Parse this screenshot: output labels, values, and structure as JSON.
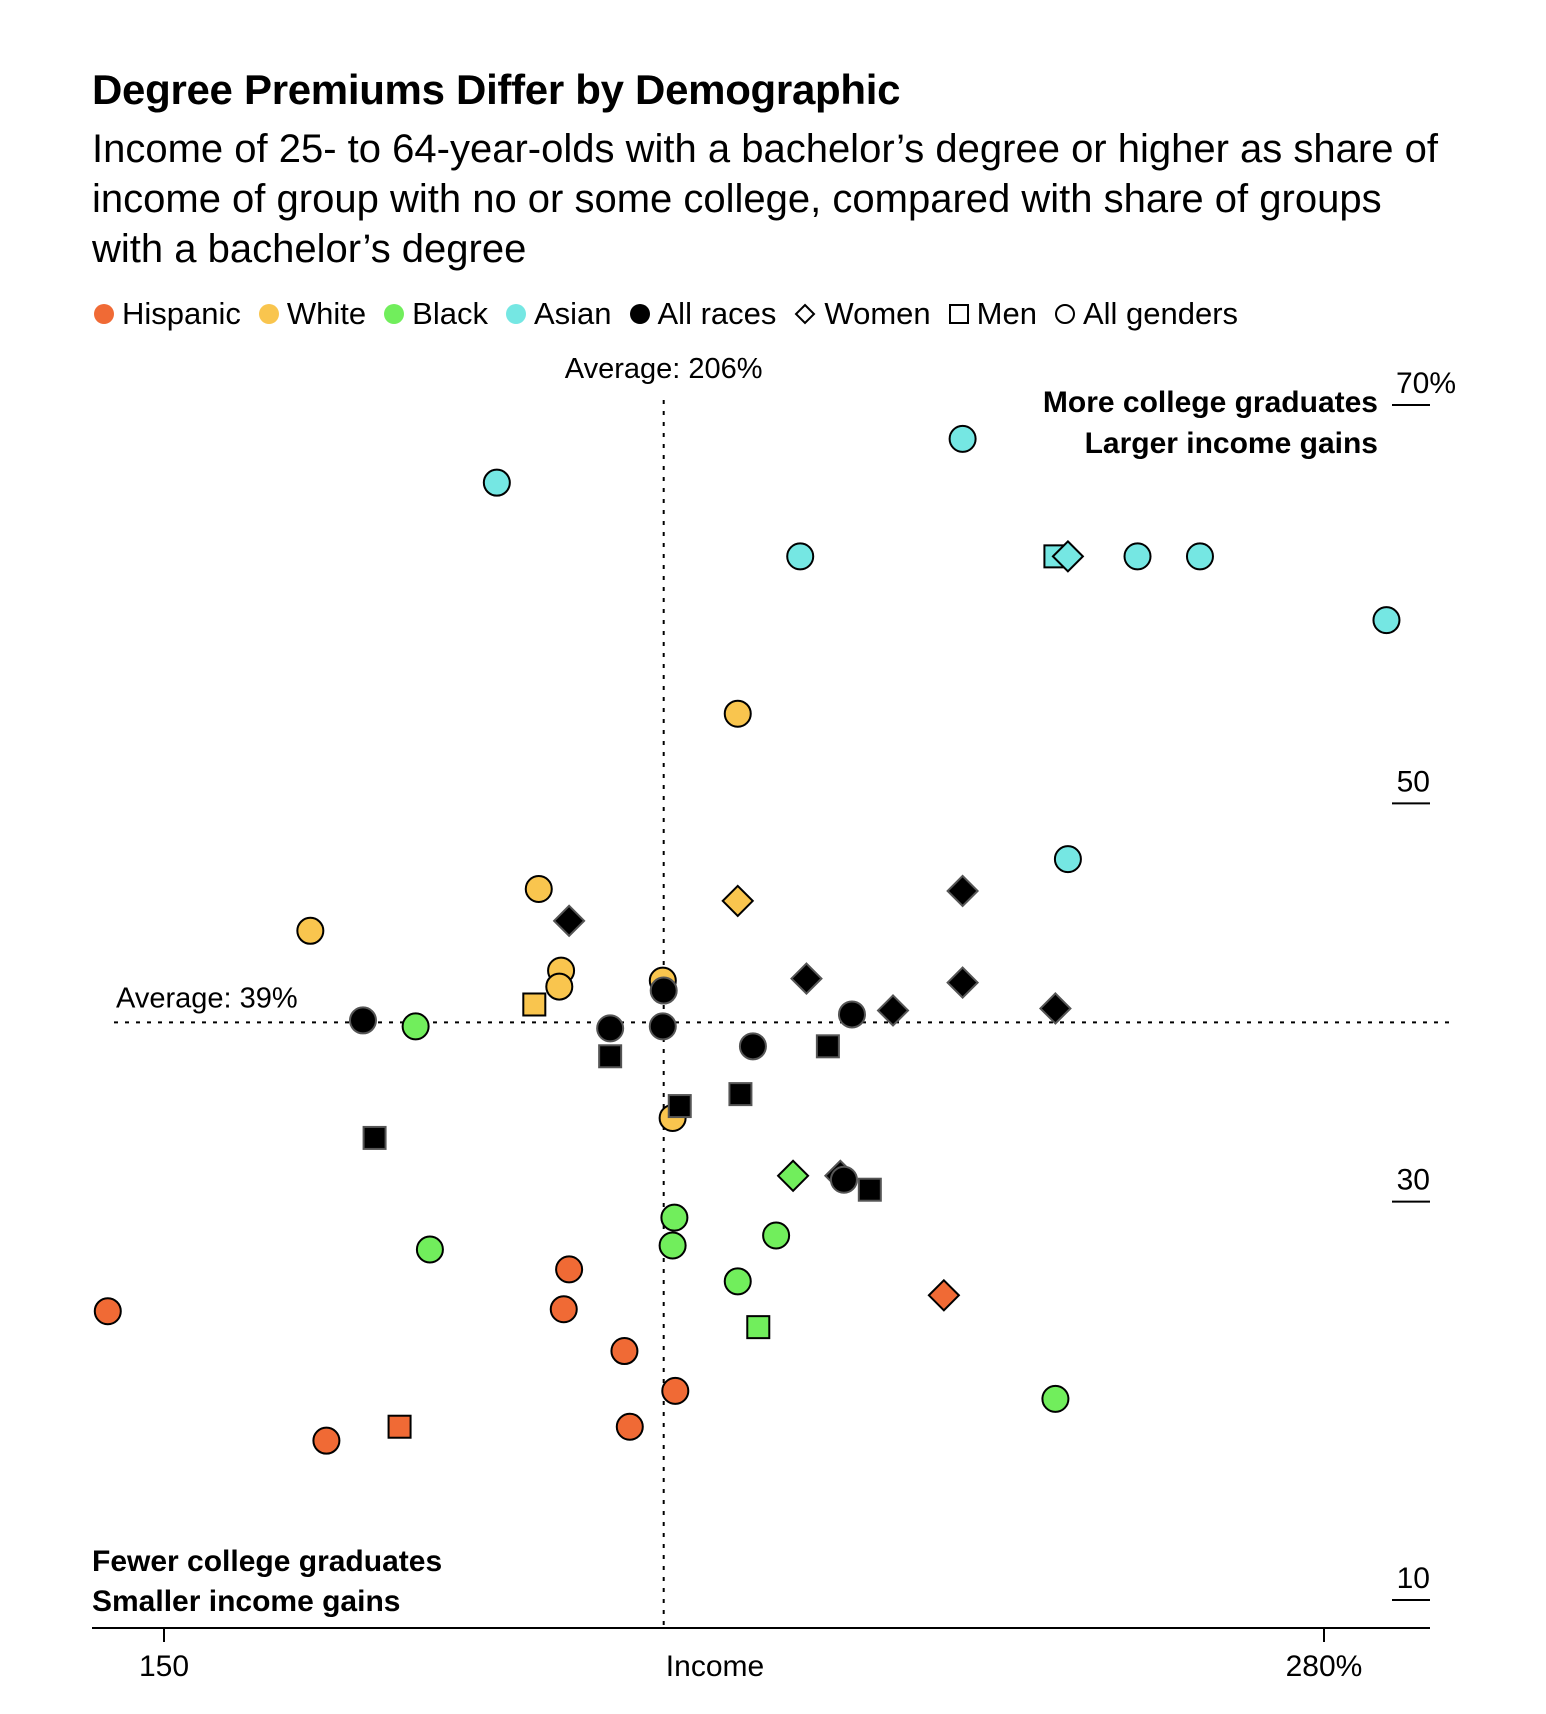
{
  "header": {
    "title": "Degree Premiums Differ by Demographic",
    "subtitle": "Income of 25- to 64-year-olds with a bachelor’s degree or higher as share of income of group with no or some college, compared with share of groups with a bachelor’s degree"
  },
  "legend": {
    "races": [
      {
        "label": "Hispanic",
        "color": "#f06a35"
      },
      {
        "label": "White",
        "color": "#f9c54e"
      },
      {
        "label": "Black",
        "color": "#71ee5c"
      },
      {
        "label": "Asian",
        "color": "#75e7e3"
      },
      {
        "label": "All races",
        "color": "#000000"
      }
    ],
    "genders": [
      {
        "label": "Women",
        "shape": "diamond"
      },
      {
        "label": "Men",
        "shape": "square"
      },
      {
        "label": "All genders",
        "shape": "circle"
      }
    ]
  },
  "chart_data": {
    "type": "scatter",
    "xlabel": "Income",
    "ylabel": "",
    "xlim": [
      143,
      285
    ],
    "ylim": [
      8,
      72
    ],
    "x_ticks": [
      {
        "value": 150,
        "label": "150"
      },
      {
        "value": 280,
        "label": "280%"
      }
    ],
    "y_ticks": [
      {
        "value": 70,
        "label": "70%"
      },
      {
        "value": 50,
        "label": "50"
      },
      {
        "value": 30,
        "label": "30"
      },
      {
        "value": 10,
        "label": "10"
      }
    ],
    "grid": false,
    "reference_lines": [
      {
        "axis": "x",
        "value": 206,
        "label": "Average: 206%"
      },
      {
        "axis": "y",
        "value": 39,
        "label": "Average: 39%"
      }
    ],
    "quadrant_labels": [
      {
        "position": "top-right",
        "lines": [
          "More college graduates",
          "Larger income gains"
        ]
      },
      {
        "position": "bottom-left",
        "lines": [
          "Fewer college graduates",
          "Smaller income gains"
        ]
      }
    ],
    "points": [
      {
        "race": "Asian",
        "gender": "All genders",
        "x": 239.5,
        "y": 68.3
      },
      {
        "race": "Asian",
        "gender": "All genders",
        "x": 187.3,
        "y": 66.1
      },
      {
        "race": "Asian",
        "gender": "All genders",
        "x": 221.3,
        "y": 62.4
      },
      {
        "race": "Asian",
        "gender": "Men",
        "x": 249.9,
        "y": 62.4
      },
      {
        "race": "Asian",
        "gender": "Women",
        "x": 251.3,
        "y": 62.4
      },
      {
        "race": "Asian",
        "gender": "All genders",
        "x": 259.1,
        "y": 62.4
      },
      {
        "race": "Asian",
        "gender": "All genders",
        "x": 266.1,
        "y": 62.4
      },
      {
        "race": "Asian",
        "gender": "All genders",
        "x": 287.0,
        "y": 59.2
      },
      {
        "race": "Asian",
        "gender": "All genders",
        "x": 251.3,
        "y": 47.2
      },
      {
        "race": "White",
        "gender": "All genders",
        "x": 214.3,
        "y": 54.5
      },
      {
        "race": "White",
        "gender": "All genders",
        "x": 192.0,
        "y": 45.7
      },
      {
        "race": "White",
        "gender": "Women",
        "x": 214.3,
        "y": 45.1
      },
      {
        "race": "White",
        "gender": "All genders",
        "x": 166.4,
        "y": 43.6
      },
      {
        "race": "White",
        "gender": "All genders",
        "x": 194.5,
        "y": 41.6
      },
      {
        "race": "White",
        "gender": "All genders",
        "x": 194.3,
        "y": 40.8
      },
      {
        "race": "White",
        "gender": "All genders",
        "x": 205.9,
        "y": 41.1
      },
      {
        "race": "White",
        "gender": "Men",
        "x": 191.5,
        "y": 39.9
      },
      {
        "race": "White",
        "gender": "All genders",
        "x": 207.0,
        "y": 34.2
      },
      {
        "race": "All races",
        "gender": "Women",
        "x": 195.4,
        "y": 44.1
      },
      {
        "race": "All races",
        "gender": "Women",
        "x": 239.5,
        "y": 45.6
      },
      {
        "race": "All races",
        "gender": "Women",
        "x": 222.0,
        "y": 41.2
      },
      {
        "race": "All races",
        "gender": "Women",
        "x": 239.5,
        "y": 41.0
      },
      {
        "race": "All races",
        "gender": "Women",
        "x": 231.7,
        "y": 39.6
      },
      {
        "race": "All races",
        "gender": "Women",
        "x": 249.9,
        "y": 39.7
      },
      {
        "race": "All races",
        "gender": "Women",
        "x": 225.8,
        "y": 31.3
      },
      {
        "race": "All races",
        "gender": "All genders",
        "x": 206.0,
        "y": 40.6
      },
      {
        "race": "All races",
        "gender": "All genders",
        "x": 172.3,
        "y": 39.1
      },
      {
        "race": "All races",
        "gender": "All genders",
        "x": 200.0,
        "y": 38.7
      },
      {
        "race": "All races",
        "gender": "All genders",
        "x": 205.9,
        "y": 38.8
      },
      {
        "race": "All races",
        "gender": "All genders",
        "x": 216.0,
        "y": 37.8
      },
      {
        "race": "All races",
        "gender": "All genders",
        "x": 227.1,
        "y": 39.4
      },
      {
        "race": "All races",
        "gender": "All genders",
        "x": 226.2,
        "y": 31.1
      },
      {
        "race": "All races",
        "gender": "Men",
        "x": 200.0,
        "y": 37.3
      },
      {
        "race": "All races",
        "gender": "Men",
        "x": 224.4,
        "y": 37.8
      },
      {
        "race": "All races",
        "gender": "Men",
        "x": 214.6,
        "y": 35.4
      },
      {
        "race": "All races",
        "gender": "Men",
        "x": 207.8,
        "y": 34.8
      },
      {
        "race": "All races",
        "gender": "Men",
        "x": 173.6,
        "y": 33.2
      },
      {
        "race": "All races",
        "gender": "Men",
        "x": 229.1,
        "y": 30.6
      },
      {
        "race": "Black",
        "gender": "All genders",
        "x": 178.2,
        "y": 38.8
      },
      {
        "race": "Black",
        "gender": "Women",
        "x": 220.5,
        "y": 31.3
      },
      {
        "race": "Black",
        "gender": "All genders",
        "x": 207.2,
        "y": 29.2
      },
      {
        "race": "Black",
        "gender": "All genders",
        "x": 207.0,
        "y": 27.8
      },
      {
        "race": "Black",
        "gender": "All genders",
        "x": 218.6,
        "y": 28.3
      },
      {
        "race": "Black",
        "gender": "All genders",
        "x": 179.8,
        "y": 27.6
      },
      {
        "race": "Black",
        "gender": "All genders",
        "x": 214.3,
        "y": 26.0
      },
      {
        "race": "Black",
        "gender": "Men",
        "x": 216.6,
        "y": 23.7
      },
      {
        "race": "Black",
        "gender": "All genders",
        "x": 249.9,
        "y": 20.1
      },
      {
        "race": "Hispanic",
        "gender": "All genders",
        "x": 195.4,
        "y": 26.6
      },
      {
        "race": "Hispanic",
        "gender": "All genders",
        "x": 143.7,
        "y": 24.5
      },
      {
        "race": "Hispanic",
        "gender": "All genders",
        "x": 194.8,
        "y": 24.6
      },
      {
        "race": "Hispanic",
        "gender": "Women",
        "x": 237.4,
        "y": 25.3
      },
      {
        "race": "Hispanic",
        "gender": "All genders",
        "x": 201.6,
        "y": 22.5
      },
      {
        "race": "Hispanic",
        "gender": "All genders",
        "x": 207.3,
        "y": 20.5
      },
      {
        "race": "Hispanic",
        "gender": "Men",
        "x": 176.4,
        "y": 18.7
      },
      {
        "race": "Hispanic",
        "gender": "All genders",
        "x": 168.2,
        "y": 18.0
      },
      {
        "race": "Hispanic",
        "gender": "All genders",
        "x": 202.2,
        "y": 18.7
      }
    ]
  }
}
